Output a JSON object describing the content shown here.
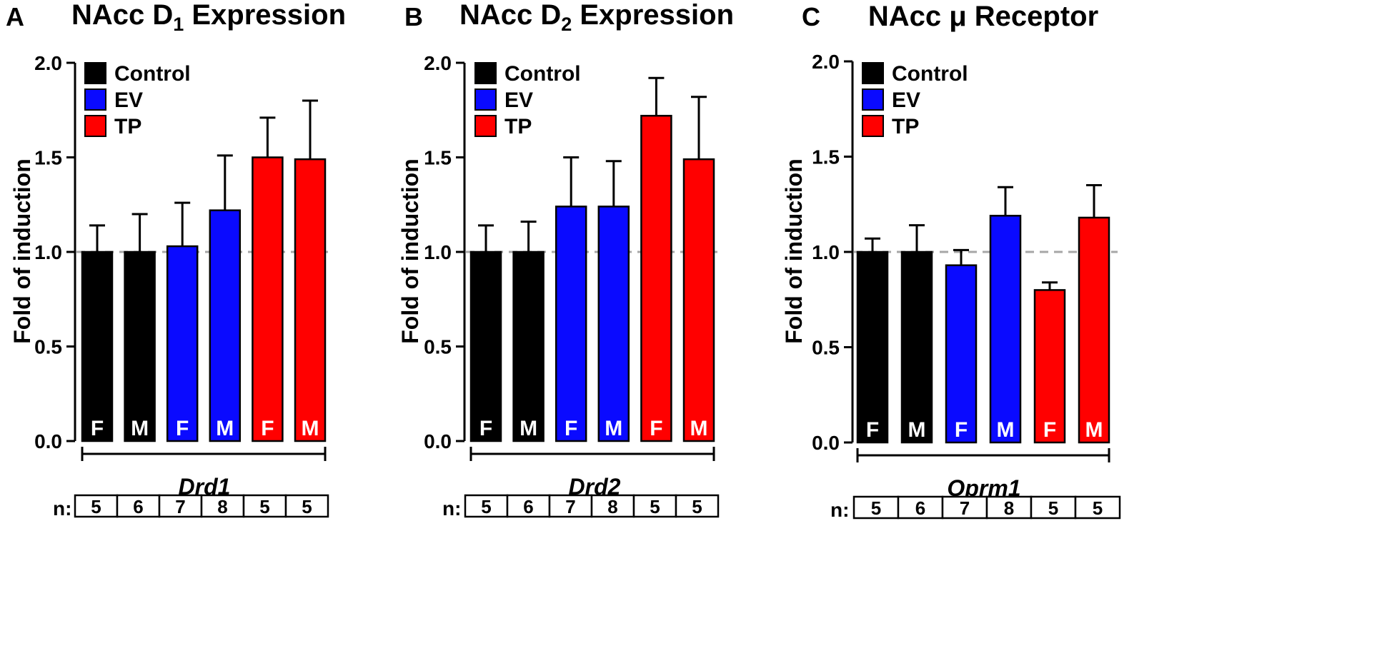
{
  "colors": {
    "Control": "#000000",
    "EV": "#0a0aff",
    "TP": "#ff0000",
    "reference": "#a6a6a6"
  },
  "chart_data": [
    {
      "type": "bar",
      "panel": "A",
      "title_main": "NAcc D",
      "title_sub": "1",
      "title_rest": " Expression",
      "ylabel": "Fold of induction",
      "xlabel": "Drd1",
      "ylim": [
        0,
        2
      ],
      "yticks": [
        "0.0",
        "0.5",
        "1.0",
        "1.5",
        "2.0"
      ],
      "reference_line": 1.0,
      "legend": [
        "Control",
        "EV",
        "TP"
      ],
      "categories": [
        "F",
        "M",
        "F",
        "M",
        "F",
        "M"
      ],
      "groups": [
        "Control",
        "Control",
        "EV",
        "EV",
        "TP",
        "TP"
      ],
      "values": [
        1.0,
        1.0,
        1.03,
        1.22,
        1.5,
        1.49
      ],
      "errors": [
        0.14,
        0.2,
        0.23,
        0.29,
        0.21,
        0.31
      ],
      "n_label": "n:",
      "n": [
        "5",
        "6",
        "7",
        "8",
        "5",
        "5"
      ]
    },
    {
      "type": "bar",
      "panel": "B",
      "title_main": "NAcc D",
      "title_sub": "2",
      "title_rest": " Expression",
      "ylabel": "Fold of induction",
      "xlabel": "Drd2",
      "ylim": [
        0,
        2
      ],
      "yticks": [
        "0.0",
        "0.5",
        "1.0",
        "1.5",
        "2.0"
      ],
      "reference_line": 1.0,
      "legend": [
        "Control",
        "EV",
        "TP"
      ],
      "categories": [
        "F",
        "M",
        "F",
        "M",
        "F",
        "M"
      ],
      "groups": [
        "Control",
        "Control",
        "EV",
        "EV",
        "TP",
        "TP"
      ],
      "values": [
        1.0,
        1.0,
        1.24,
        1.24,
        1.72,
        1.49
      ],
      "errors": [
        0.14,
        0.16,
        0.26,
        0.24,
        0.2,
        0.33
      ],
      "n_label": "n:",
      "n": [
        "5",
        "6",
        "7",
        "8",
        "5",
        "5"
      ]
    },
    {
      "type": "bar",
      "panel": "C",
      "title_main": "NAcc μ Receptor",
      "title_sub": "",
      "title_rest": "",
      "ylabel": "Fold of induction",
      "xlabel": "Oprm1",
      "ylim": [
        0,
        2
      ],
      "yticks": [
        "0.0",
        "0.5",
        "1.0",
        "1.5",
        "2.0"
      ],
      "reference_line": 1.0,
      "legend": [
        "Control",
        "EV",
        "TP"
      ],
      "categories": [
        "F",
        "M",
        "F",
        "M",
        "F",
        "M"
      ],
      "groups": [
        "Control",
        "Control",
        "EV",
        "EV",
        "TP",
        "TP"
      ],
      "values": [
        1.0,
        1.0,
        0.93,
        1.19,
        0.8,
        1.18
      ],
      "errors": [
        0.07,
        0.14,
        0.08,
        0.15,
        0.04,
        0.17
      ],
      "n_label": "n:",
      "n": [
        "5",
        "6",
        "7",
        "8",
        "5",
        "5"
      ]
    }
  ]
}
